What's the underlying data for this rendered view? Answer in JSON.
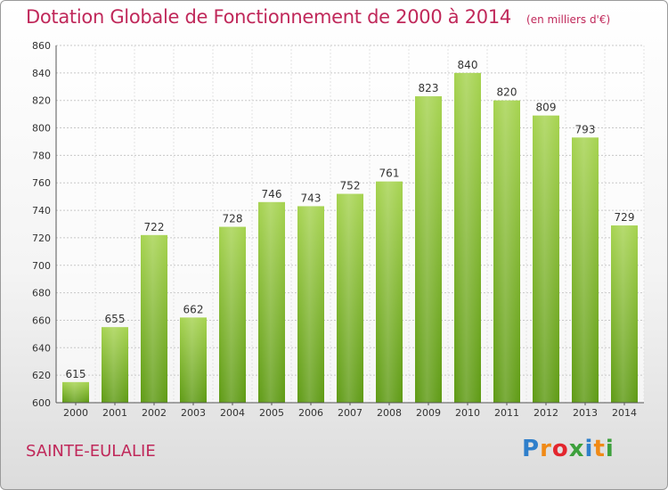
{
  "title": "Dotation Globale de Fonctionnement de 2000 à 2014",
  "unit": "(en milliers d'€)",
  "commune": "SAINTE-EULALIE",
  "logo": {
    "letters": [
      "P",
      "r",
      "o",
      "x",
      "i",
      "t",
      "i"
    ],
    "colors": [
      "#2f7fcb",
      "#f08a16",
      "#e3262e",
      "#3da03c",
      "#2f7fcb",
      "#f08a16",
      "#3da03c"
    ]
  },
  "chart_data": {
    "type": "bar",
    "categories": [
      "2000",
      "2001",
      "2002",
      "2003",
      "2004",
      "2005",
      "2006",
      "2007",
      "2008",
      "2009",
      "2010",
      "2011",
      "2012",
      "2013",
      "2014"
    ],
    "values": [
      615,
      655,
      722,
      662,
      728,
      746,
      743,
      752,
      761,
      823,
      840,
      820,
      809,
      793,
      729
    ],
    "ylim": [
      600,
      860
    ],
    "yticks": [
      600,
      620,
      640,
      660,
      680,
      700,
      720,
      740,
      760,
      780,
      800,
      820,
      840,
      860
    ],
    "grid": true,
    "bar_color": "#7fbf2a"
  }
}
